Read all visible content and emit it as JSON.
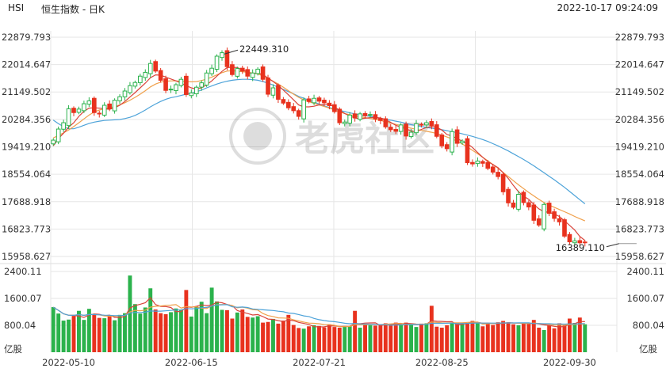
{
  "header": {
    "symbol": "HSI",
    "name": "恒生指数",
    "period": "日K",
    "separator": "-",
    "timestamp": "2022-10-17 09:24:09"
  },
  "watermark": "老虎社区",
  "colors": {
    "up": "#2bb24c",
    "down": "#e8321e",
    "ma_short": "#d9433a",
    "ma_mid": "#f0a04b",
    "ma_long": "#4da3d9",
    "grid": "#e6e6e6"
  },
  "chart_data": {
    "type": "candlestick",
    "price_axis": {
      "ticks": [
        "22879.793",
        "22014.647",
        "21149.502",
        "20284.356",
        "19419.210",
        "18554.064",
        "17688.918",
        "16823.773",
        "15958.627"
      ],
      "ylim": [
        15958.627,
        22879.793
      ]
    },
    "volume_axis": {
      "ticks": [
        "2400.11",
        "1600.07",
        "800.04"
      ],
      "unit": "亿股",
      "ylim": [
        0,
        2400.11
      ]
    },
    "x_ticks": [
      "2022-05-10",
      "2022-06-15",
      "2022-07-21",
      "2022-08-25",
      "2022-09-30"
    ],
    "x_tick_index": [
      3,
      27,
      52,
      76,
      101
    ],
    "annotations": {
      "high": "22449.310",
      "low": "16389.110",
      "high_index": 33,
      "low_index": 111
    },
    "closes": [
      19630,
      19980,
      20180,
      20620,
      20500,
      20610,
      20780,
      20870,
      20500,
      20460,
      20730,
      20620,
      20890,
      21000,
      21180,
      21350,
      21450,
      21650,
      21770,
      22050,
      21810,
      21520,
      21200,
      21240,
      21380,
      21550,
      21070,
      21120,
      21300,
      21440,
      21750,
      21900,
      22280,
      22390,
      21950,
      21700,
      21890,
      21810,
      21650,
      21750,
      21870,
      21550,
      21080,
      21280,
      20920,
      20800,
      20650,
      20560,
      20380,
      20900,
      20850,
      20950,
      20860,
      20810,
      20720,
      20530,
      20180,
      20200,
      20420,
      20330,
      20460,
      20400,
      20440,
      20300,
      20250,
      20050,
      19960,
      19910,
      20110,
      19760,
      19880,
      20150,
      20120,
      20180,
      20090,
      19750,
      19450,
      19360,
      19900,
      19530,
      19600,
      18920,
      18880,
      18970,
      18900,
      18740,
      18620,
      18480,
      18000,
      17650,
      17510,
      17920,
      17660,
      17520,
      17100,
      16950,
      17600,
      17320,
      17160,
      17050,
      16600,
      16420,
      16450,
      16390,
      16390
    ],
    "volumes": [
      1340,
      1150,
      940,
      970,
      1080,
      1230,
      960,
      1290,
      1130,
      1020,
      1010,
      1070,
      950,
      1110,
      1160,
      2280,
      1430,
      1150,
      1330,
      1900,
      1270,
      1160,
      1130,
      1190,
      1300,
      1270,
      1850,
      1060,
      1360,
      1500,
      1160,
      1920,
      1510,
      1260,
      1250,
      1000,
      1180,
      1270,
      1050,
      1030,
      1070,
      880,
      900,
      990,
      850,
      940,
      1110,
      810,
      720,
      700,
      770,
      800,
      780,
      740,
      830,
      750,
      730,
      780,
      770,
      1230,
      730,
      820,
      800,
      790,
      820,
      860,
      830,
      880,
      830,
      880,
      840,
      750,
      850,
      860,
      1380,
      760,
      730,
      800,
      870,
      880,
      860,
      870,
      930,
      890,
      770,
      870,
      810,
      890,
      930,
      890,
      830,
      800,
      860,
      850,
      960,
      730,
      660,
      790,
      710,
      860,
      810,
      1000,
      870,
      1030,
      830
    ],
    "ma_short": [
      19450,
      19680,
      19850,
      20040,
      20180,
      20380,
      20540,
      20640,
      20650,
      20640,
      20620,
      20600,
      20650,
      20730,
      20850,
      20990,
      21130,
      21280,
      21430,
      21600,
      21690,
      21680,
      21620,
      21560,
      21500,
      21430,
      21350,
      21280,
      21240,
      21280,
      21380,
      21500,
      21650,
      21800,
      21920,
      21930,
      21920,
      21850,
      21780,
      21720,
      21750,
      21700,
      21590,
      21480,
      21360,
      21210,
      21060,
      20900,
      20740,
      20680,
      20680,
      20700,
      20740,
      20760,
      20760,
      20680,
      20570,
      20470,
      20390,
      20330,
      20300,
      20320,
      20340,
      20340,
      20330,
      20270,
      20190,
      20100,
      20040,
      19990,
      19920,
      19900,
      19970,
      20030,
      20060,
      20040,
      19950,
      19810,
      19760,
      19680,
      19600,
      19520,
      19400,
      19240,
      19090,
      18950,
      18860,
      18760,
      18600,
      18420,
      18200,
      18000,
      17860,
      17760,
      17600,
      17460,
      17370,
      17350,
      17300,
      17220,
      17080,
      16940,
      16790,
      16590,
      16460
    ],
    "ma_mid": [
      19700,
      19780,
      19860,
      19950,
      20060,
      20180,
      20300,
      20420,
      20520,
      20580,
      20620,
      20650,
      20690,
      20740,
      20810,
      20890,
      20980,
      21080,
      21190,
      21310,
      21400,
      21460,
      21490,
      21500,
      21500,
      21490,
      21480,
      21470,
      21480,
      21510,
      21560,
      21620,
      21690,
      21760,
      21810,
      21820,
      21810,
      21790,
      21770,
      21750,
      21720,
      21660,
      21580,
      21490,
      21400,
      21300,
      21190,
      21080,
      20980,
      20900,
      20840,
      20790,
      20740,
      20690,
      20640,
      20580,
      20520,
      20470,
      20430,
      20400,
      20370,
      20340,
      20310,
      20280,
      20250,
      20210,
      20170,
      20130,
      20090,
      20050,
      20010,
      19970,
      19940,
      19910,
      19880,
      19840,
      19790,
      19730,
      19670,
      19600,
      19510,
      19410,
      19310,
      19200,
      19090,
      18980,
      18860,
      18740,
      18610,
      18480,
      18350,
      18220,
      18100,
      17980,
      17870,
      17760,
      17660,
      17580,
      17510,
      17440,
      17370,
      17300,
      17220,
      17150,
      17080
    ],
    "ma_long": [
      20260,
      20150,
      20060,
      19990,
      19990,
      20040,
      20100,
      20160,
      20200,
      20230,
      20250,
      20260,
      20270,
      20280,
      20310,
      20350,
      20410,
      20490,
      20580,
      20680,
      20770,
      20850,
      20920,
      20970,
      21000,
      21040,
      21080,
      21110,
      21160,
      21210,
      21280,
      21340,
      21400,
      21450,
      21490,
      21520,
      21540,
      21550,
      21550,
      21540,
      21520,
      21480,
      21430,
      21370,
      21300,
      21230,
      21160,
      21090,
      21010,
      20950,
      20890,
      20830,
      20770,
      20710,
      20660,
      20610,
      20570,
      20530,
      20490,
      20460,
      20430,
      20400,
      20380,
      20350,
      20320,
      20290,
      20260,
      20230,
      20200,
      20160,
      20120,
      20090,
      20060,
      20030,
      20010,
      19980,
      19960,
      19930,
      19900,
      19870,
      19830,
      19790,
      19750,
      19700,
      19650,
      19590,
      19520,
      19450,
      19370,
      19290,
      19200,
      19110,
      19020,
      18920,
      18820,
      18710,
      18600,
      18490,
      18380,
      18260,
      18140,
      18010,
      17880,
      17750,
      17620
    ]
  }
}
